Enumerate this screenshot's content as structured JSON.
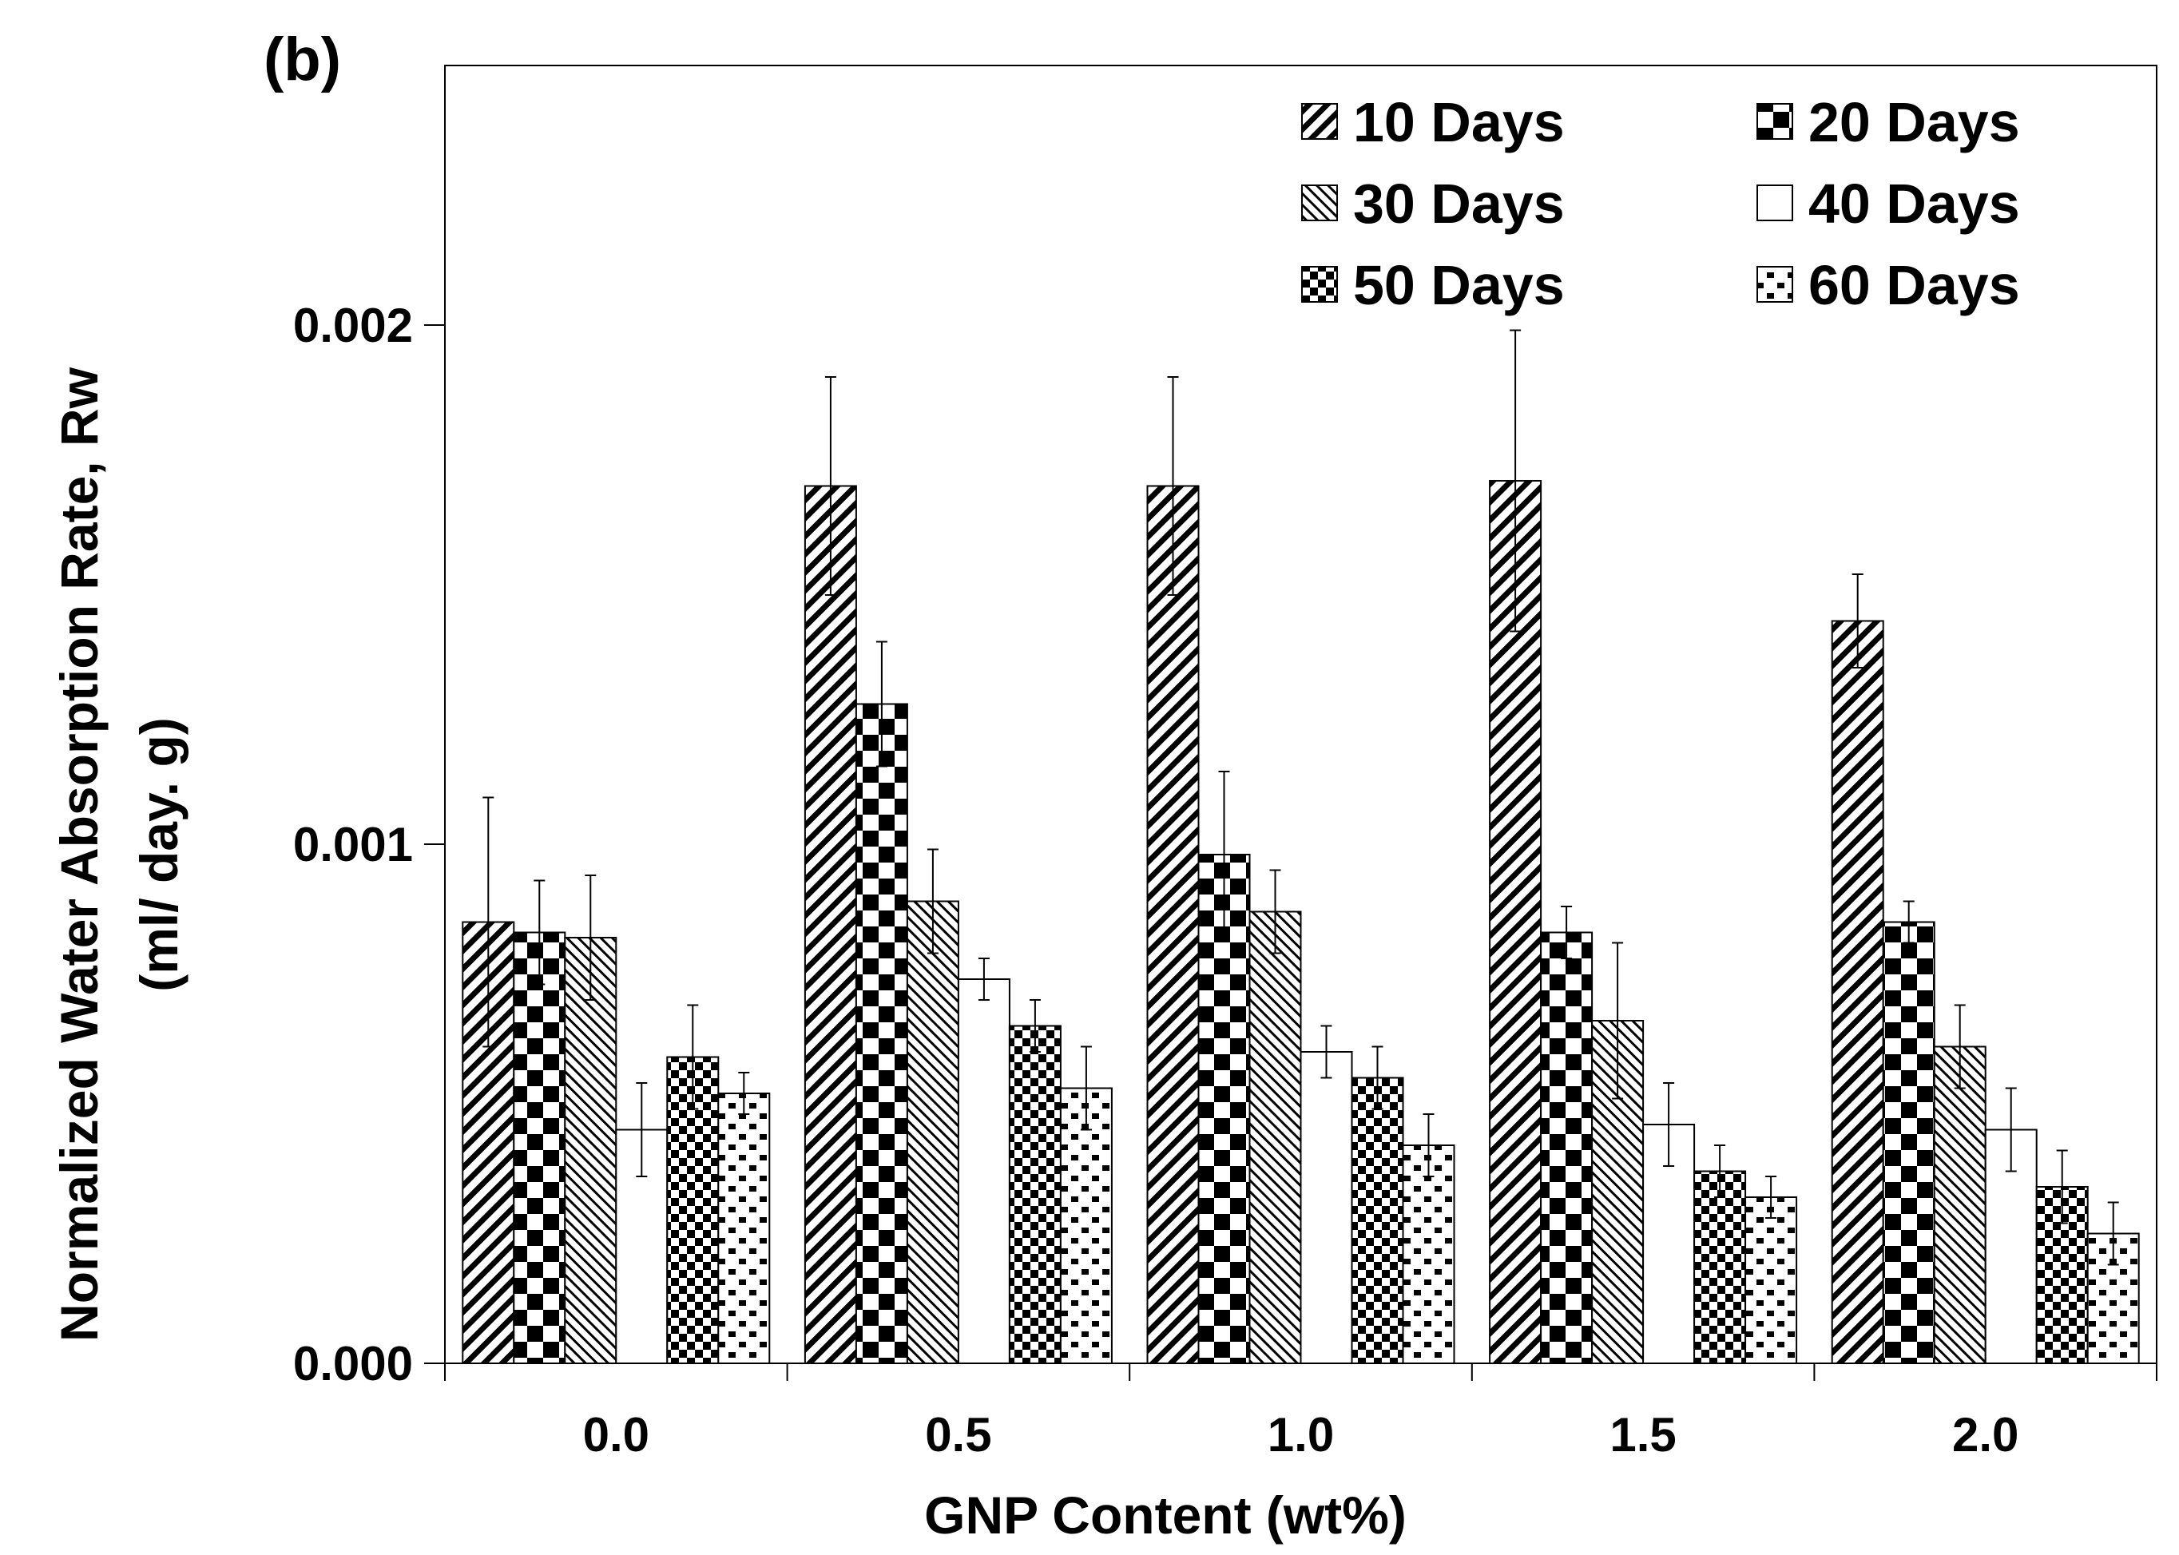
{
  "panel_label": "(b)",
  "chart_data": {
    "type": "bar",
    "categories": [
      "0.0",
      "0.5",
      "1.0",
      "1.5",
      "2.0"
    ],
    "xlabel": "GNP Content (wt%)",
    "ylabel_line1": "Normalized Water Absorption Rate, Rw",
    "ylabel_line2": "(ml/ day. g)",
    "ylim": [
      0,
      0.0025
    ],
    "yticks": [
      "0.000",
      "0.001",
      "0.002"
    ],
    "ytick_values": [
      0,
      0.001,
      0.002
    ],
    "legend_position": "top-right",
    "series": [
      {
        "name": "10 Days",
        "pattern": "diagonal",
        "values": [
          0.00085,
          0.00169,
          0.00169,
          0.0017,
          0.00143
        ],
        "errors": [
          0.00024,
          0.00021,
          0.00021,
          0.00029,
          9e-05
        ]
      },
      {
        "name": "20 Days",
        "pattern": "checker-large",
        "values": [
          0.00083,
          0.00127,
          0.00098,
          0.00083,
          0.00085
        ],
        "errors": [
          0.0001,
          0.00012,
          0.00016,
          5e-05,
          4e-05
        ]
      },
      {
        "name": "30 Days",
        "pattern": "diagonal-fine",
        "values": [
          0.00082,
          0.00089,
          0.00087,
          0.00066,
          0.00061
        ],
        "errors": [
          0.00012,
          0.0001,
          8e-05,
          0.00015,
          8e-05
        ]
      },
      {
        "name": "40 Days",
        "pattern": "white",
        "values": [
          0.00045,
          0.00074,
          0.0006,
          0.00046,
          0.00045
        ],
        "errors": [
          9e-05,
          4e-05,
          5e-05,
          8e-05,
          8e-05
        ]
      },
      {
        "name": "50 Days",
        "pattern": "checker-small",
        "values": [
          0.00059,
          0.00065,
          0.00055,
          0.00037,
          0.00034
        ],
        "errors": [
          0.0001,
          5e-05,
          6e-05,
          5e-05,
          7e-05
        ]
      },
      {
        "name": "60 Days",
        "pattern": "dotted",
        "values": [
          0.00052,
          0.00053,
          0.00042,
          0.00032,
          0.00025
        ],
        "errors": [
          4e-05,
          8e-05,
          6e-05,
          4e-05,
          6e-05
        ]
      }
    ]
  }
}
